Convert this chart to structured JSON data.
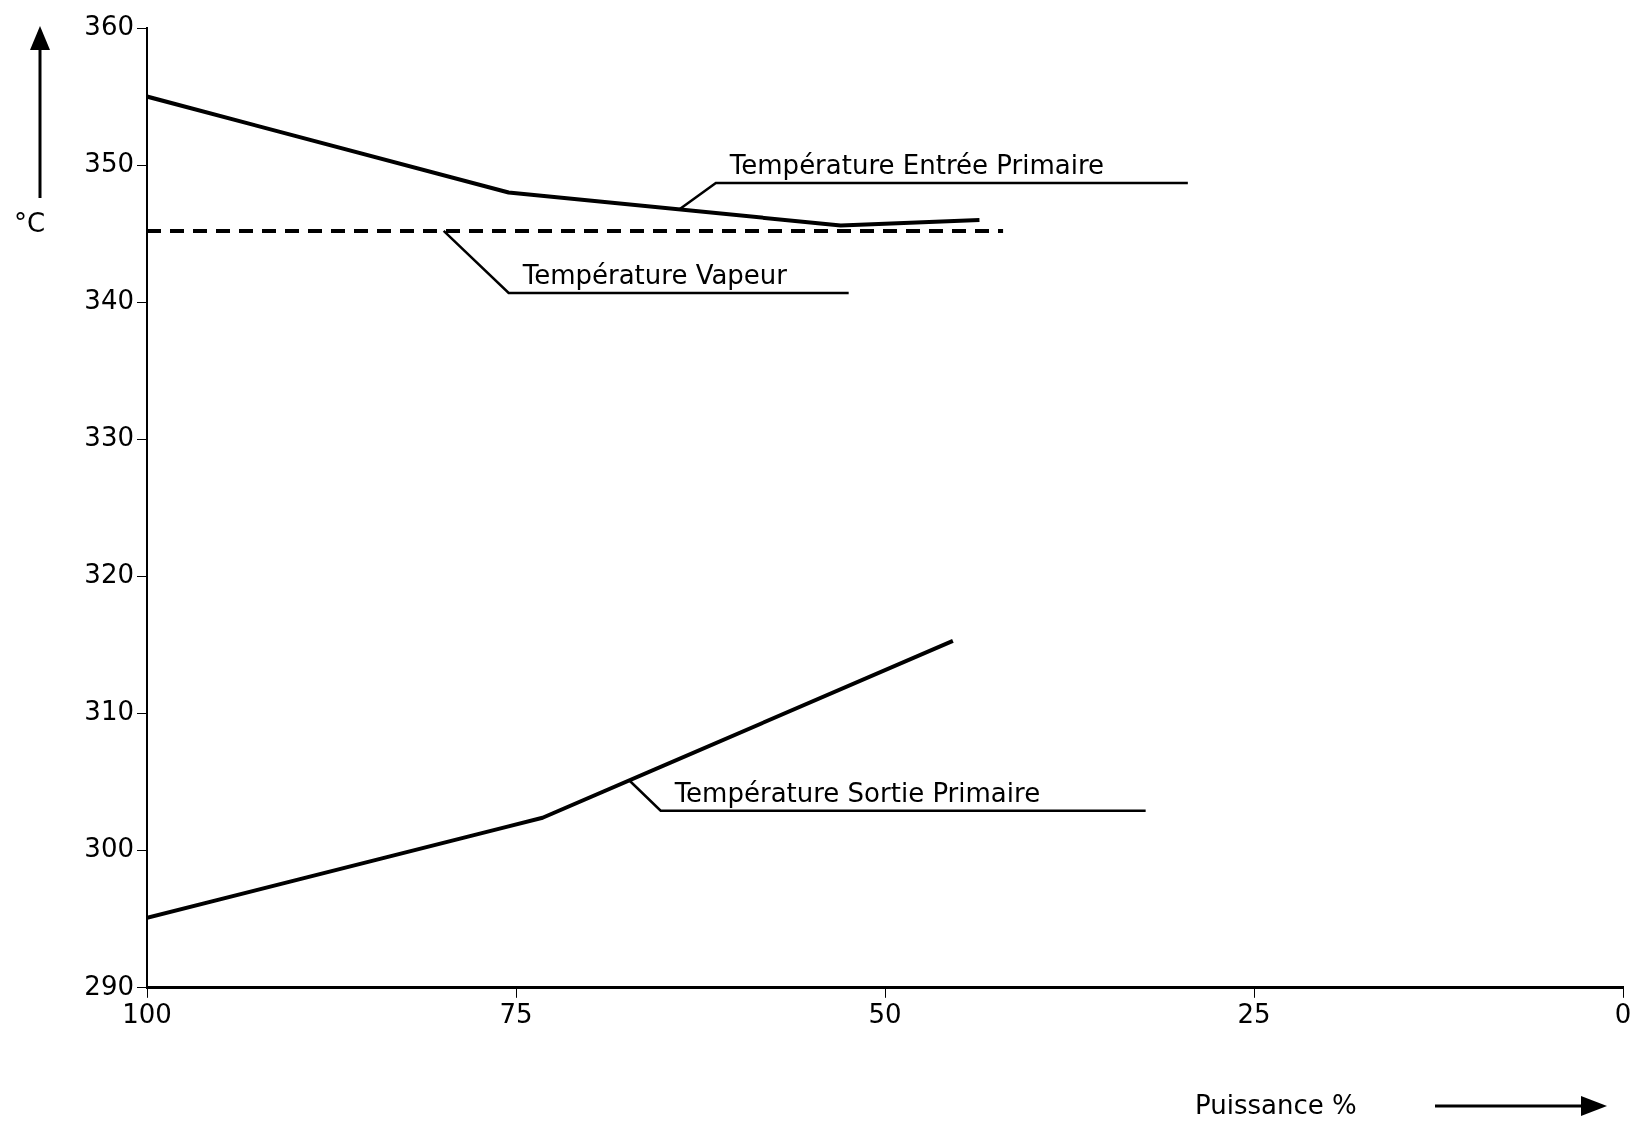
{
  "chart_data": {
    "type": "line",
    "xlabel": "Puissance %",
    "ylabel": "°C",
    "xlim": [
      100,
      0
    ],
    "xticks": [
      100,
      75,
      50,
      25,
      0
    ],
    "ylim": [
      290,
      360
    ],
    "yticks": [
      290,
      300,
      310,
      320,
      330,
      340,
      350,
      360
    ],
    "grid": false,
    "legend": false,
    "marker": "none",
    "series": [
      {
        "color": "#000000",
        "line_style": "solid",
        "x": [
          100,
          75.5,
          53,
          43.6
        ],
        "values": [
          355,
          348,
          345.6,
          346
        ]
      },
      {
        "color": "#000000",
        "line_style": "dashed",
        "x": [
          100,
          42
        ],
        "values": [
          345.2,
          345.2
        ]
      },
      {
        "color": "#000000",
        "line_style": "solid",
        "x": [
          100,
          73.2,
          45.4
        ],
        "values": [
          295.1,
          302.4,
          315.3
        ]
      }
    ],
    "annotations": [
      {
        "text": "Température Entrée Primaire",
        "x": 63.9,
        "y": 346.8
      },
      {
        "text": "Température Vapeur",
        "x": 79.9,
        "y": 345.2
      },
      {
        "text": "Température Sortie Primaire",
        "x": 67.3,
        "y": 305.1
      }
    ]
  }
}
